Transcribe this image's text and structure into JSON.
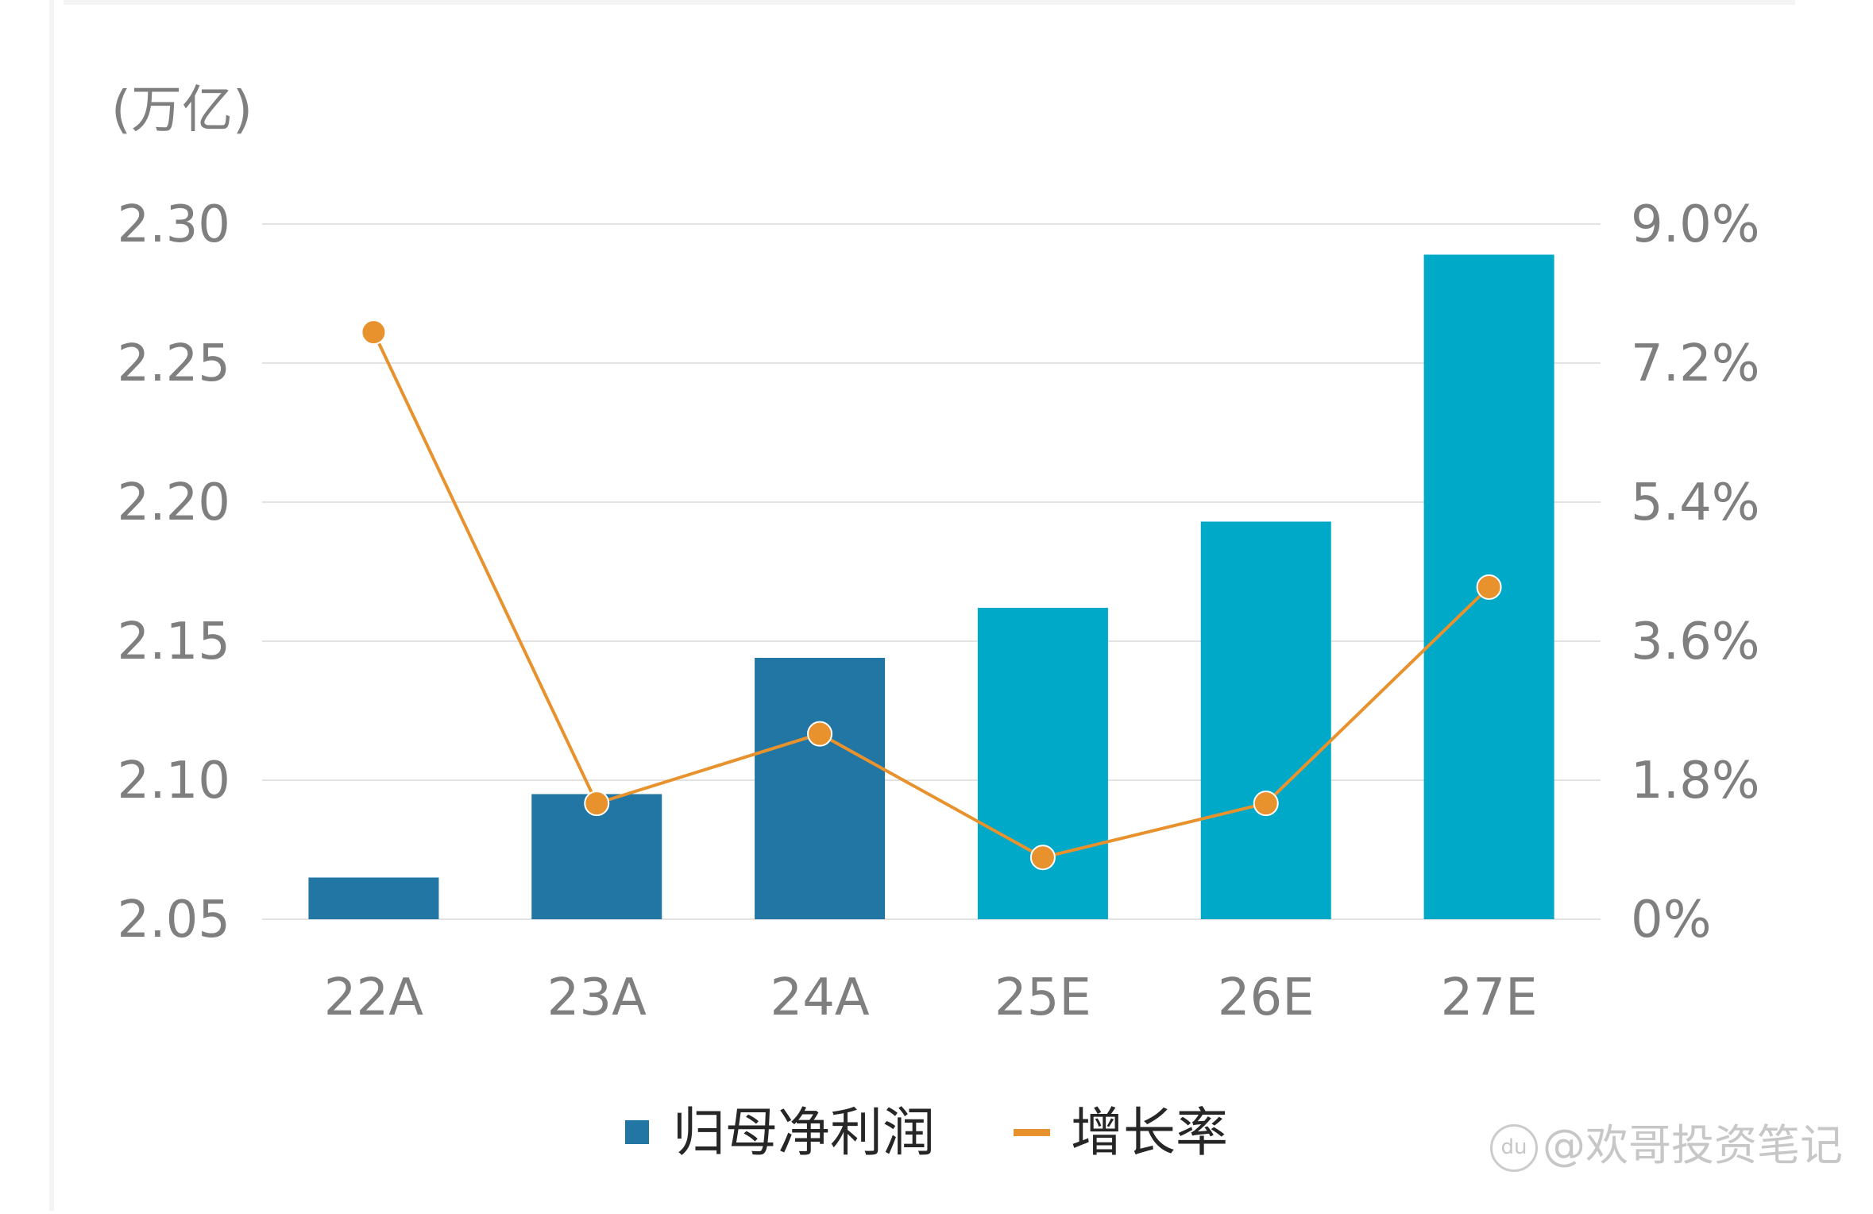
{
  "chart_data": {
    "type": "bar",
    "unit_label": "(万亿)",
    "categories": [
      "22A",
      "23A",
      "24A",
      "25E",
      "26E",
      "27E"
    ],
    "series": [
      {
        "name": "归母净利润",
        "type": "bar",
        "axis": "left",
        "values": [
          2.065,
          2.095,
          2.144,
          2.162,
          2.193,
          2.289
        ],
        "colors": [
          "#2176a3",
          "#2176a3",
          "#2176a3",
          "#00a9c7",
          "#00a9c7",
          "#00a9c7"
        ]
      },
      {
        "name": "增长率",
        "type": "line",
        "axis": "right",
        "values": [
          7.6,
          1.5,
          2.4,
          0.8,
          1.5,
          4.3
        ],
        "color": "#e8922e"
      }
    ],
    "y_left": {
      "min": 2.05,
      "max": 2.3,
      "ticks": [
        "2.30",
        "2.25",
        "2.20",
        "2.15",
        "2.10",
        "2.05"
      ]
    },
    "y_right": {
      "min": 0,
      "max": 9.0,
      "ticks": [
        "9.0%",
        "7.2%",
        "5.4%",
        "3.6%",
        "1.8%",
        "0%"
      ]
    },
    "grid": true,
    "legend": "bottom-center"
  },
  "watermark": {
    "icon": "du",
    "text": "@欢哥投资笔记"
  }
}
